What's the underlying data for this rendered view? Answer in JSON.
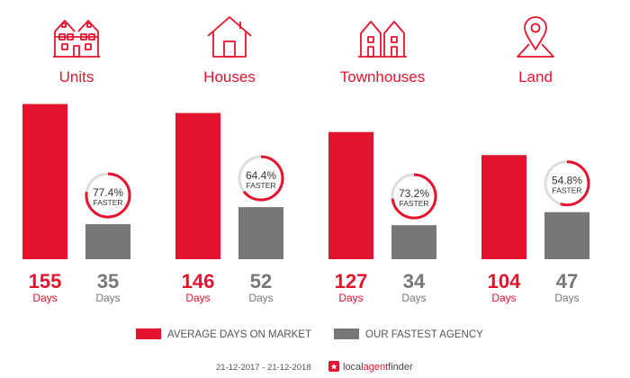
{
  "chart_data": {
    "type": "bar",
    "categories": [
      "Units",
      "Houses",
      "Townhouses",
      "Land"
    ],
    "series": [
      {
        "name": "AVERAGE DAYS ON MARKET",
        "values": [
          155,
          146,
          127,
          104
        ],
        "color": "#e4142e"
      },
      {
        "name": "OUR FASTEST AGENCY",
        "values": [
          35,
          52,
          34,
          47
        ],
        "color": "#777777"
      }
    ],
    "unit_label": "Days",
    "faster": [
      {
        "value": 77.4,
        "label": "77.4%",
        "text": "FASTER"
      },
      {
        "value": 64.4,
        "label": "64.4%",
        "text": "FASTER"
      },
      {
        "value": 73.2,
        "label": "73.2%",
        "text": "FASTER"
      },
      {
        "value": 54.8,
        "label": "54.8%",
        "text": "FASTER"
      }
    ],
    "icons": [
      "units-icon",
      "house-icon",
      "townhouses-icon",
      "land-pin-icon"
    ],
    "ylim": [
      0,
      160
    ],
    "grid": false,
    "legend_position": "bottom"
  },
  "footer": {
    "date_range": "21-12-2017 - 21-12-2018",
    "brand_part1": "local",
    "brand_part2": "agent",
    "brand_part3": "finder"
  },
  "colors": {
    "accent": "#e4142e",
    "secondary": "#777777",
    "ring_track": "#dddddd"
  }
}
